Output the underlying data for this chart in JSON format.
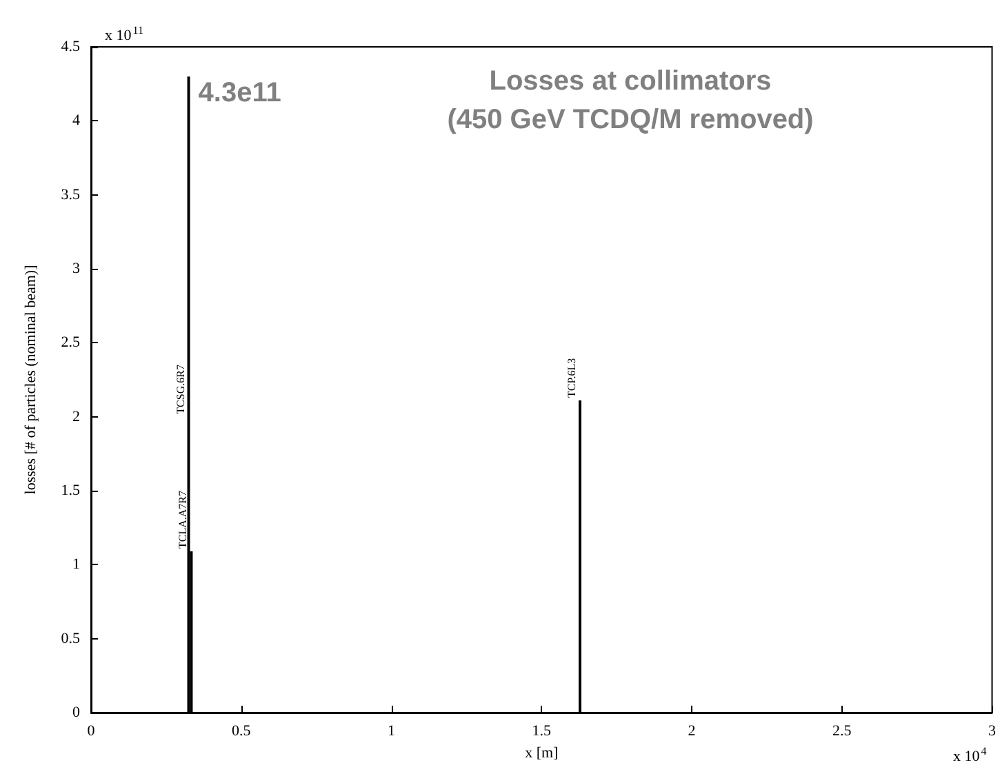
{
  "chart_data": {
    "type": "bar",
    "title": "Losses at collimators",
    "subtitle": "(450 GeV TCDQ/M removed)",
    "xlabel": "x [m]",
    "ylabel": "losses [# of particles (nominal beam)]",
    "x": [
      0.325,
      0.334,
      1.628
    ],
    "series": [
      {
        "color": "#000000",
        "values": [
          4.3,
          1.09,
          2.11
        ]
      }
    ],
    "xlim": [
      0,
      3
    ],
    "xticks": [
      0,
      0.5,
      1,
      1.5,
      2,
      2.5,
      3
    ],
    "ylim": [
      0,
      4.5
    ],
    "yticks": [
      0,
      0.5,
      1,
      1.5,
      2,
      2.5,
      3,
      3.5,
      4,
      4.5
    ],
    "annotations": [
      {
        "text": "4.3e11",
        "x": 0.325,
        "y": 4.3
      },
      {
        "text": "TCSG.6R7",
        "x": 0.325,
        "y": 2.0
      },
      {
        "text": "TCLA.A7R7",
        "x": 0.334,
        "y": 1.09
      },
      {
        "text": "TCP.6L3",
        "x": 1.628,
        "y": 2.11
      },
      "x 10$^{11}$",
      "x 10$^{4}$"
    ],
    "grid": false
  }
}
